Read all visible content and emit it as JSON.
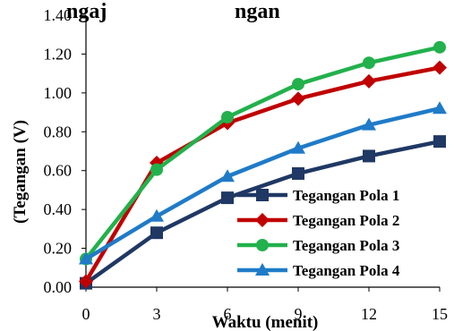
{
  "chart_data": {
    "type": "line",
    "title_visible": "...ngaj...ngan...",
    "title_fragment_left": "ngaj",
    "title_fragment_right": "ngan",
    "xlabel": "Waktu (menit)",
    "ylabel": "(Tegangan (V)",
    "x": [
      0,
      3,
      6,
      9,
      12,
      15
    ],
    "x_ticks": [
      "0",
      "3",
      "6",
      "9",
      "12",
      "15"
    ],
    "y_ticks": [
      "0.00",
      "0.20",
      "0.40",
      "0.60",
      "0.80",
      "1.00",
      "1.20",
      "1.40"
    ],
    "xlim": [
      0,
      15
    ],
    "ylim": [
      0,
      1.4
    ],
    "grid": false,
    "legend_position": "bottom-right",
    "series": [
      {
        "name": "Tegangan Pola 1",
        "color": "#1f3864",
        "marker": "square",
        "values": [
          0.02,
          0.28,
          0.46,
          0.585,
          0.675,
          0.75
        ]
      },
      {
        "name": "Tegangan Pola 2",
        "color": "#c00000",
        "marker": "diamond",
        "values": [
          0.03,
          0.64,
          0.845,
          0.97,
          1.06,
          1.13
        ]
      },
      {
        "name": "Tegangan Pola 3",
        "color": "#22b14c",
        "marker": "circle",
        "values": [
          0.145,
          0.605,
          0.875,
          1.045,
          1.155,
          1.235
        ]
      },
      {
        "name": "Tegangan Pola 4",
        "color": "#1f7bc8",
        "marker": "triangle",
        "values": [
          0.145,
          0.365,
          0.57,
          0.715,
          0.835,
          0.92
        ]
      }
    ]
  }
}
